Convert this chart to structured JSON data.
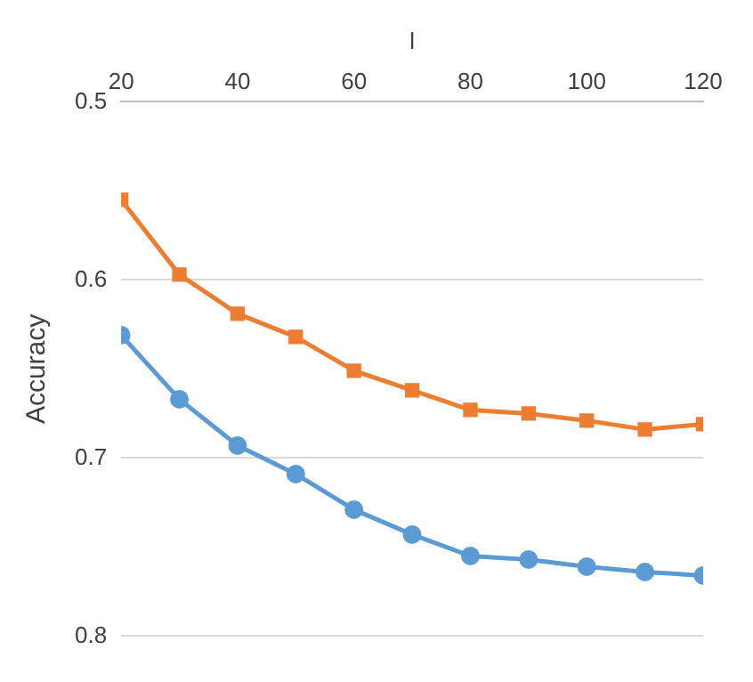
{
  "chart_data": {
    "type": "line",
    "xlabel": "l",
    "ylabel": "Accuracy",
    "x": [
      20,
      30,
      40,
      50,
      60,
      70,
      80,
      90,
      100,
      110,
      120
    ],
    "series": [
      {
        "color": "#5b9bd5",
        "marker": "circle",
        "values": [
          0.631,
          0.667,
          0.693,
          0.709,
          0.729,
          0.743,
          0.755,
          0.757,
          0.761,
          0.764,
          0.766
        ]
      },
      {
        "color": "#ed7d31",
        "marker": "square",
        "values": [
          0.555,
          0.597,
          0.619,
          0.632,
          0.651,
          0.662,
          0.673,
          0.675,
          0.679,
          0.684,
          0.681
        ]
      }
    ],
    "xlim": [
      20,
      120
    ],
    "xticks": [
      20,
      40,
      60,
      80,
      100,
      120
    ],
    "ylim": [
      0.8,
      0.5
    ],
    "yticks": [
      0.5,
      0.6,
      0.7,
      0.8
    ],
    "grid": "y",
    "legend": false
  }
}
